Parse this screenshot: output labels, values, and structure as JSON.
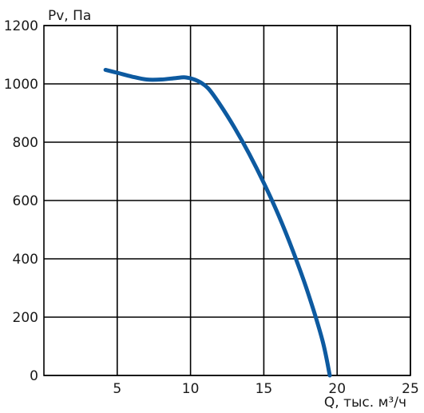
{
  "chart_data": {
    "type": "line",
    "ylabel": "Pv, Па",
    "xlabel": "Q, тыс. м³/ч",
    "xlim": [
      0,
      25
    ],
    "ylim": [
      0,
      1200
    ],
    "xticks": [
      5,
      10,
      15,
      20,
      25
    ],
    "yticks": [
      0,
      200,
      400,
      600,
      800,
      1000,
      1200
    ],
    "grid": true,
    "series": [
      {
        "color": "#0d5aa0",
        "x": [
          4.2,
          5.0,
          6.0,
          7.0,
          8.0,
          9.0,
          9.7,
          10.5,
          11.2,
          12.0,
          13.0,
          14.0,
          15.0,
          16.0,
          17.0,
          18.0,
          19.0,
          19.5
        ],
        "y": [
          1048,
          1038,
          1025,
          1015,
          1015,
          1020,
          1022,
          1010,
          985,
          930,
          850,
          760,
          660,
          550,
          425,
          285,
          120,
          0
        ]
      }
    ]
  }
}
